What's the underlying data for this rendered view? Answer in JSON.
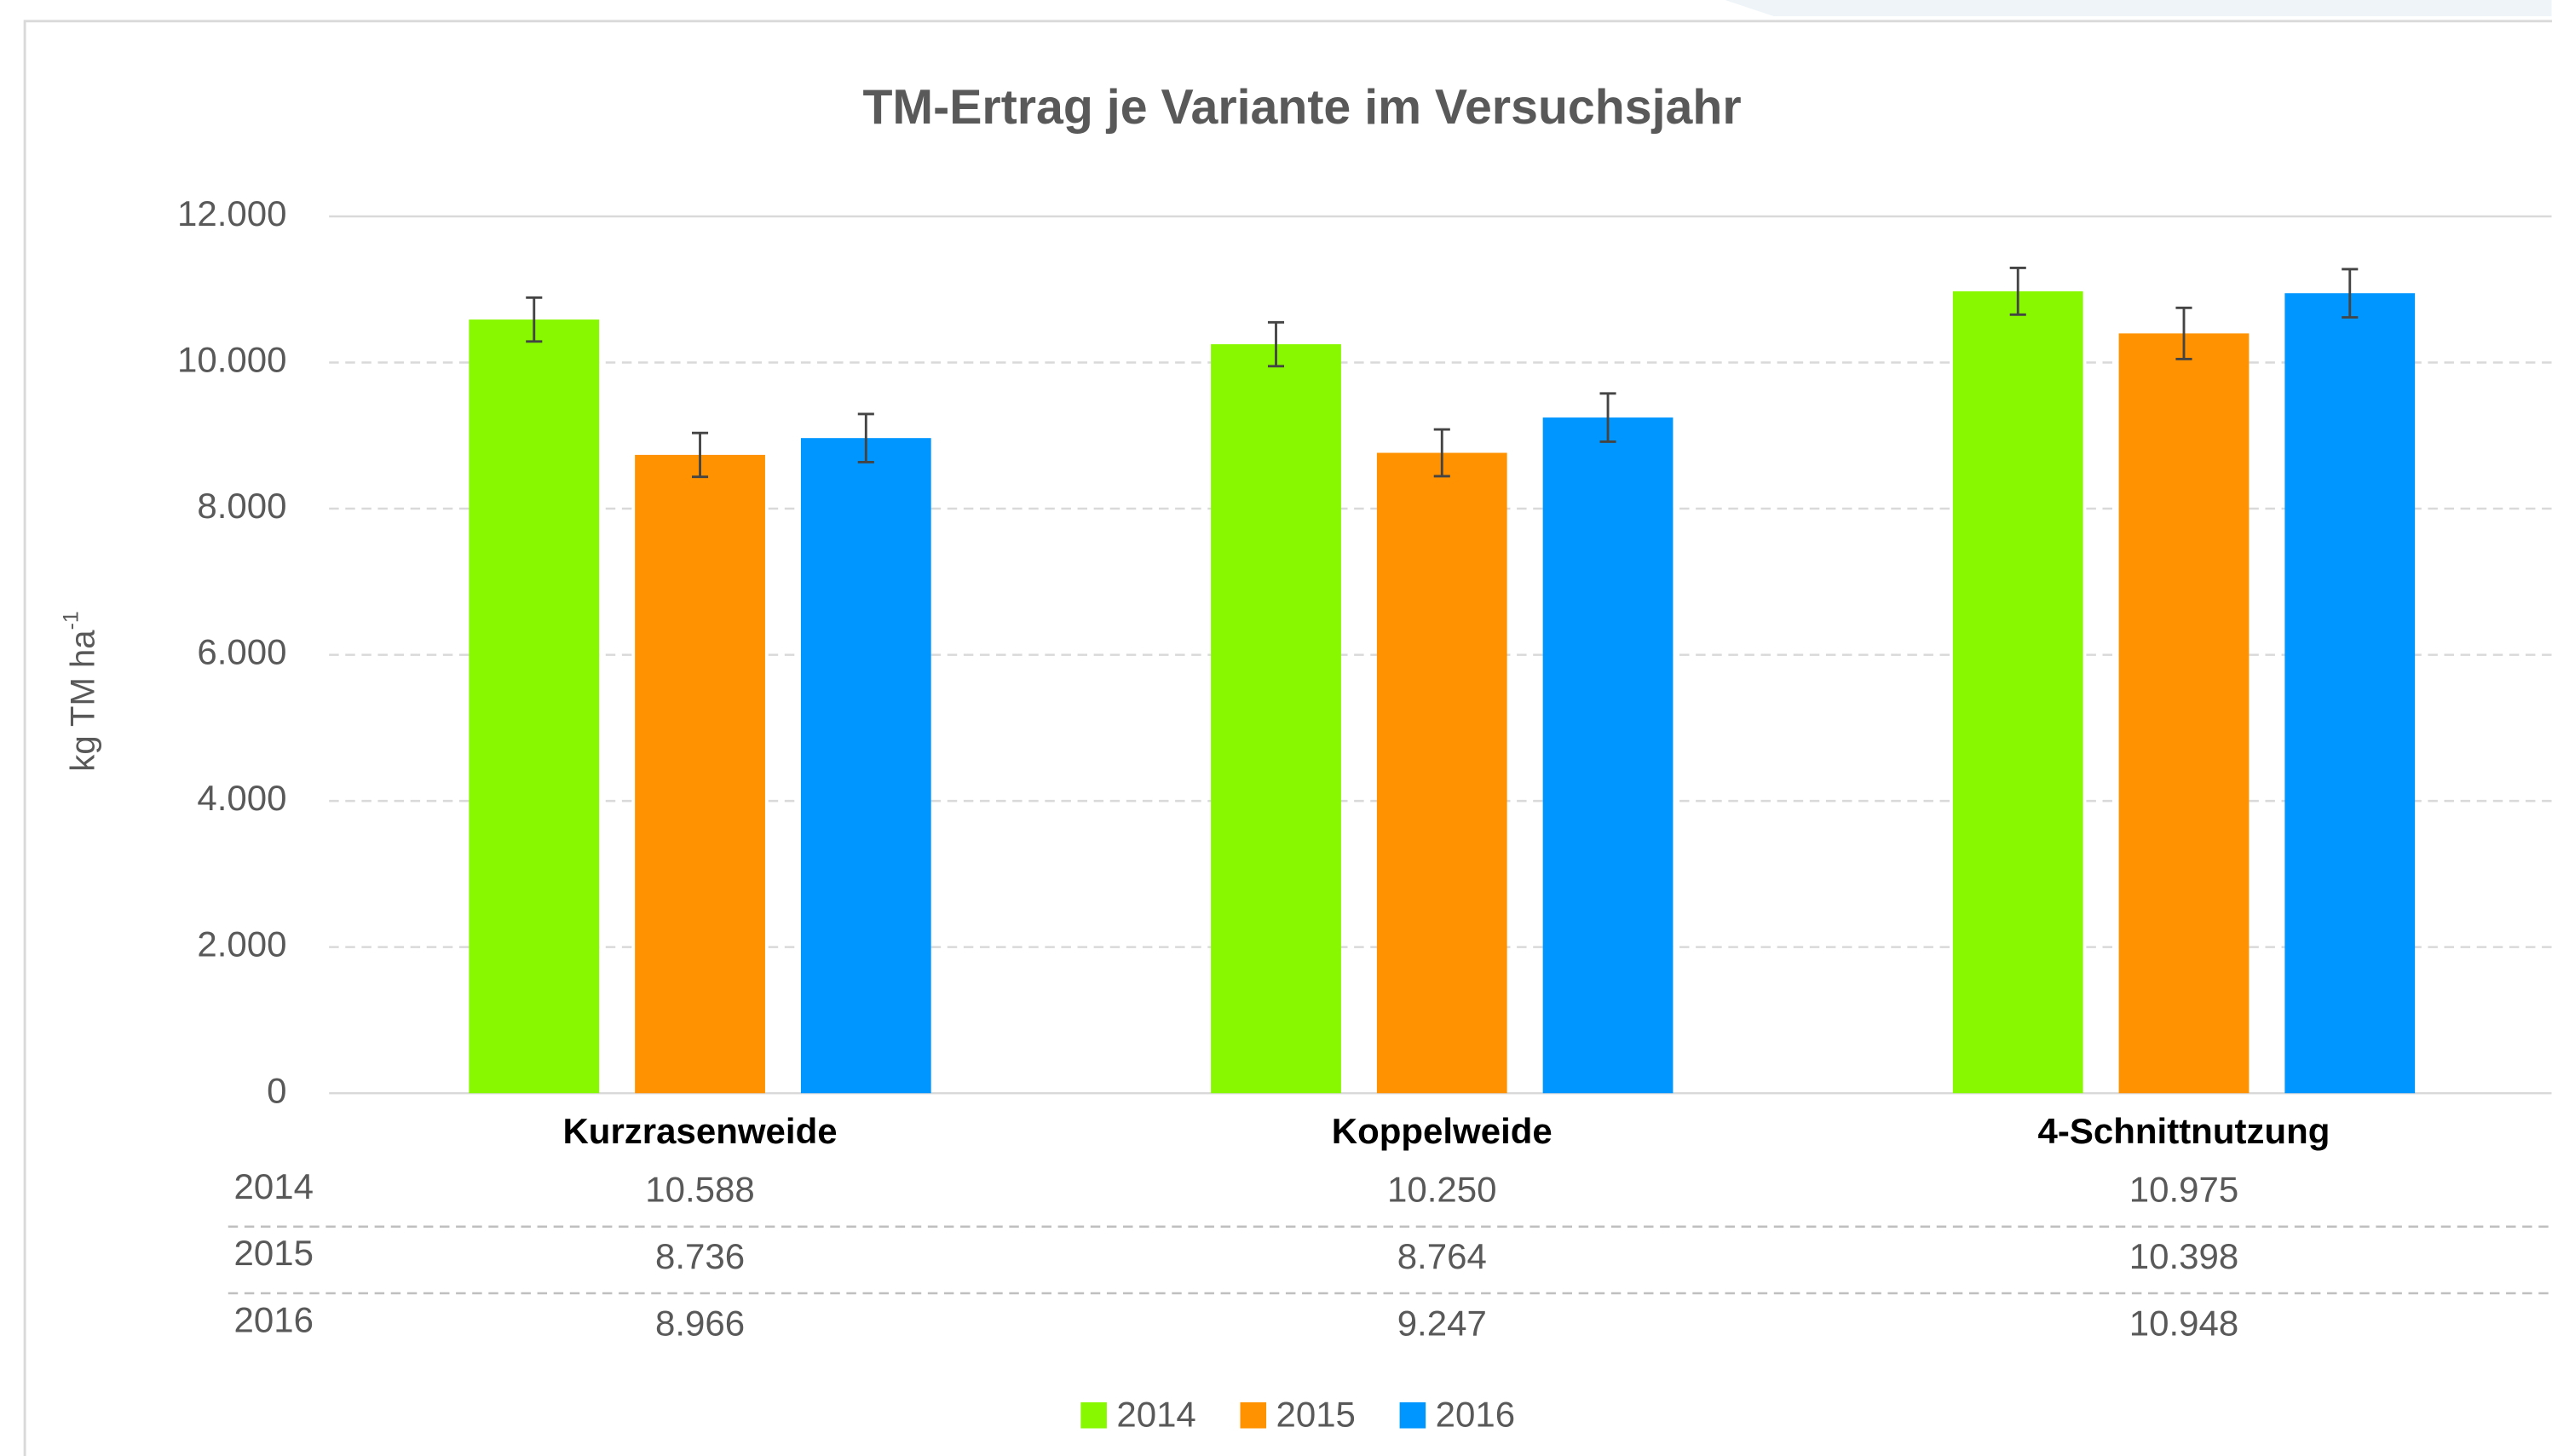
{
  "chart_data": {
    "type": "bar",
    "title": "TM-Ertrag je Variante im Versuchsjahr",
    "y_label": "kg TM ha",
    "y_label_sup": "-1",
    "categories": [
      "Kurzrasenweide",
      "Koppelweide",
      "4-Schnittnutzung"
    ],
    "series": [
      {
        "name": "2014",
        "color": "#88f800",
        "values": [
          10588,
          10250,
          10975
        ],
        "value_labels": [
          "10.588",
          "10.250",
          "10.975"
        ],
        "errors": [
          300,
          300,
          320
        ]
      },
      {
        "name": "2015",
        "color": "#ff9200",
        "values": [
          8736,
          8764,
          10398
        ],
        "value_labels": [
          "8.736",
          "8.764",
          "10.398"
        ],
        "errors": [
          300,
          320,
          350
        ]
      },
      {
        "name": "2016",
        "color": "#0096ff",
        "values": [
          8966,
          9247,
          10948
        ],
        "value_labels": [
          "8.966",
          "9.247",
          "10.948"
        ],
        "errors": [
          330,
          330,
          330
        ]
      }
    ],
    "ylim": [
      0,
      12000
    ],
    "yticks": [
      0,
      {
        "value": 2000,
        "label": "2.000"
      },
      {
        "value": 4000,
        "label": "4.000"
      },
      {
        "value": 6000,
        "label": "6.000"
      },
      {
        "value": 8000,
        "label": "8.000"
      },
      {
        "value": 10000,
        "label": "10.000"
      },
      {
        "value": 12000,
        "label": "12.000"
      }
    ],
    "grid": true,
    "legend": "bottom"
  }
}
